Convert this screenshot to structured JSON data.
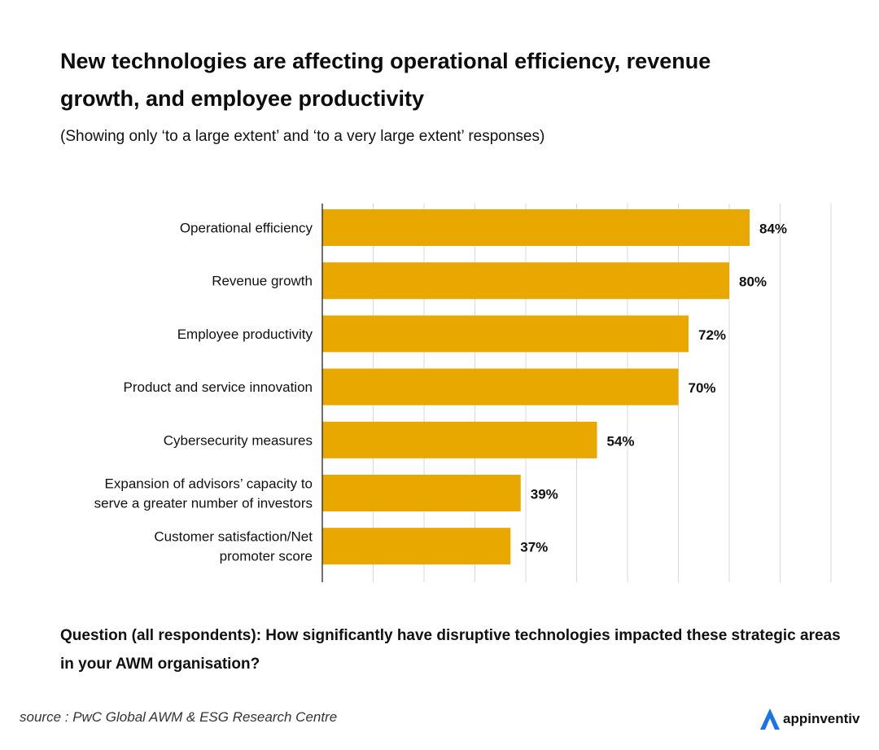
{
  "header": {
    "title": "New technologies are affecting operational efficiency, revenue growth, and employee productivity",
    "subtitle": "(Showing only ‘to a large extent’ and ‘to a very large extent’ responses)"
  },
  "chart_data": {
    "type": "bar",
    "orientation": "horizontal",
    "title": "New technologies are affecting operational efficiency, revenue growth, and employee productivity",
    "subtitle": "(Showing only ‘to a large extent’ and ‘to a very large extent’ responses)",
    "categories": [
      [
        "Operational efficiency"
      ],
      [
        "Revenue growth"
      ],
      [
        "Employee productivity"
      ],
      [
        "Product and service innovation"
      ],
      [
        "Cybersecurity measures"
      ],
      [
        "Expansion of advisors’ capacity to",
        "serve a greater number of investors"
      ],
      [
        "Customer satisfaction/Net",
        "promoter score"
      ]
    ],
    "values": [
      84,
      80,
      72,
      70,
      54,
      39,
      37
    ],
    "value_labels": [
      "84%",
      "80%",
      "72%",
      "70%",
      "54%",
      "39%",
      "37%"
    ],
    "unit": "%",
    "xlim": [
      0,
      100
    ],
    "gridlines_every": 10,
    "bar_color": "#E8A800",
    "grid_color": "#d9d9d9",
    "xlabel": "",
    "ylabel": ""
  },
  "footer": {
    "question": "Question (all respondents): How significantly have disruptive technologies impacted these strategic areas in your AWM organisation?",
    "source": "source : PwC Global AWM & ESG Research Centre",
    "brand": "appinventiv",
    "brand_color": "#1a73e8"
  }
}
